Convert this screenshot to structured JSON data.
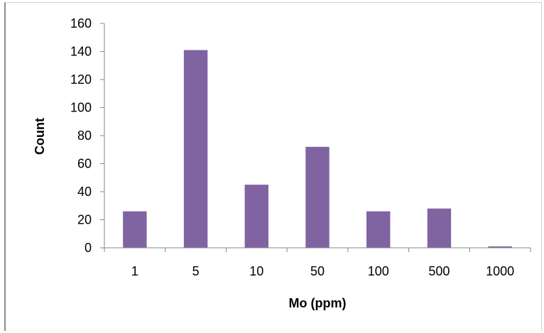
{
  "chart_data": {
    "type": "bar",
    "title": "",
    "xlabel": "Mo (ppm)",
    "ylabel": "Count",
    "categories": [
      "1",
      "5",
      "10",
      "50",
      "100",
      "500",
      "1000"
    ],
    "values": [
      26,
      141,
      45,
      72,
      26,
      28,
      1
    ],
    "ylim": [
      0,
      160
    ],
    "yticks": [
      0,
      20,
      40,
      60,
      80,
      100,
      120,
      140,
      160
    ],
    "grid": false,
    "legend": "none",
    "colors": {
      "bar": "#8064a2",
      "axis": "#868686",
      "text": "#000000"
    }
  }
}
